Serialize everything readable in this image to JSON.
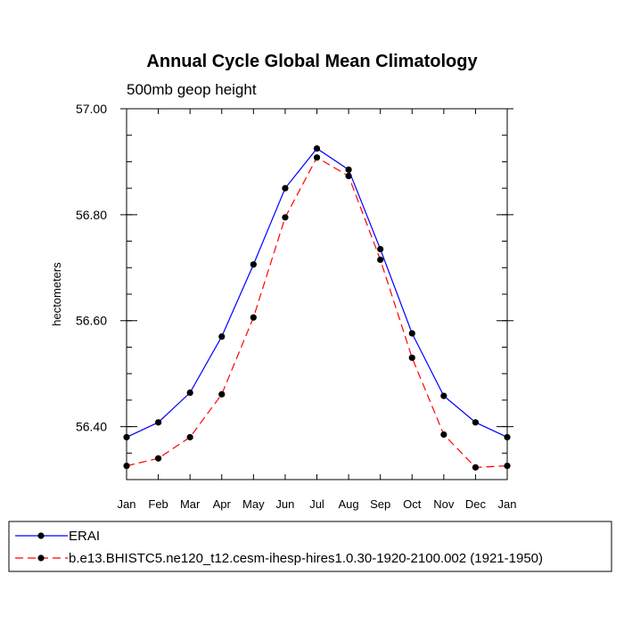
{
  "chart_data": {
    "type": "line",
    "title": "Annual Cycle Global Mean Climatology",
    "subtitle": "500mb geop height",
    "ylabel": "hectometers",
    "xlabel": "",
    "categories": [
      "Jan",
      "Feb",
      "Mar",
      "Apr",
      "May",
      "Jun",
      "Jul",
      "Aug",
      "Sep",
      "Oct",
      "Nov",
      "Dec",
      "Jan"
    ],
    "ylim": [
      56.3,
      57.0
    ],
    "yticks": [
      56.4,
      56.6,
      56.8,
      57.0
    ],
    "ytick_labels": [
      "56.40",
      "56.60",
      "56.80",
      "57.00"
    ],
    "grid": false,
    "legend_position": "bottom",
    "series": [
      {
        "name": "ERAI",
        "color": "#0000ff",
        "line_style": "solid",
        "marker": "dot",
        "values": [
          56.38,
          56.408,
          56.464,
          56.57,
          56.706,
          56.85,
          56.925,
          56.885,
          56.735,
          56.576,
          56.458,
          56.408,
          56.38
        ]
      },
      {
        "name": "b.e13.BHISTC5.ne120_t12.cesm-ihesp-hires1.0.30-1920-2100.002 (1921-1950)",
        "color": "#ff0000",
        "line_style": "dashed",
        "marker": "dot",
        "values": [
          56.326,
          56.34,
          56.38,
          56.461,
          56.606,
          56.795,
          56.908,
          56.873,
          56.715,
          56.53,
          56.385,
          56.323,
          56.326
        ]
      }
    ]
  }
}
